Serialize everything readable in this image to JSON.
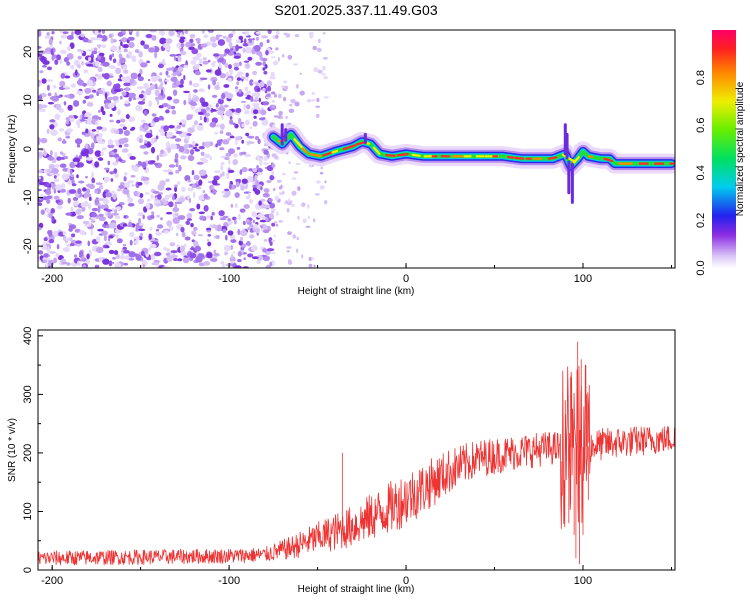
{
  "title": "S201.2025.337.11.49.G03",
  "chart_data": [
    {
      "type": "heatmap",
      "name": "spectrogram",
      "xlabel": "Height of straight line (km)",
      "ylabel": "Frequency (Hz)",
      "xlim": [
        -208,
        152
      ],
      "ylim": [
        -24.5,
        24.5
      ],
      "xticks": [
        -200,
        -100,
        0,
        100
      ],
      "yticks": [
        -20,
        -10,
        0,
        10,
        20
      ],
      "noise_region_km": [
        -208,
        -75
      ],
      "sparse_noise_region_km": [
        -75,
        -45
      ],
      "signal_track": [
        {
          "x": -75,
          "y": 2.5
        },
        {
          "x": -70,
          "y": 1.0
        },
        {
          "x": -65,
          "y": 3.0
        },
        {
          "x": -60,
          "y": 0.5
        },
        {
          "x": -55,
          "y": -1.0
        },
        {
          "x": -48,
          "y": -1.5
        },
        {
          "x": -40,
          "y": -0.5
        },
        {
          "x": -35,
          "y": 0.0
        },
        {
          "x": -30,
          "y": 0.5
        },
        {
          "x": -25,
          "y": 1.5
        },
        {
          "x": -20,
          "y": 1.0
        },
        {
          "x": -15,
          "y": -1.0
        },
        {
          "x": -8,
          "y": -1.5
        },
        {
          "x": 0,
          "y": -1.0
        },
        {
          "x": 10,
          "y": -1.5
        },
        {
          "x": 20,
          "y": -1.5
        },
        {
          "x": 30,
          "y": -1.5
        },
        {
          "x": 45,
          "y": -1.5
        },
        {
          "x": 55,
          "y": -1.5
        },
        {
          "x": 65,
          "y": -2.0
        },
        {
          "x": 75,
          "y": -2.0
        },
        {
          "x": 83,
          "y": -2.0
        },
        {
          "x": 90,
          "y": -1.0
        },
        {
          "x": 93,
          "y": -3.5
        },
        {
          "x": 97,
          "y": -2.0
        },
        {
          "x": 100,
          "y": -0.5
        },
        {
          "x": 103,
          "y": -1.5
        },
        {
          "x": 110,
          "y": -2.0
        },
        {
          "x": 115,
          "y": -2.0
        },
        {
          "x": 118,
          "y": -3.0
        },
        {
          "x": 130,
          "y": -3.0
        },
        {
          "x": 140,
          "y": -3.0
        },
        {
          "x": 150,
          "y": -3.0
        }
      ],
      "colorbar": {
        "label": "Normalized spectral amplitude",
        "range": [
          0,
          1
        ],
        "ticks": [
          "0.0",
          "0.2",
          "0.4",
          "0.6",
          "0.8"
        ]
      }
    },
    {
      "type": "line",
      "name": "snr",
      "xlabel": "Height of straight line (km)",
      "ylabel": "SNR (10 * v/v)",
      "xlim": [
        -208,
        152
      ],
      "ylim": [
        0,
        410
      ],
      "xticks": [
        -200,
        -100,
        0,
        100
      ],
      "yticks": [
        0,
        100,
        200,
        300,
        400
      ],
      "color": "#ee3333",
      "trend": [
        {
          "x": -208,
          "y": 20
        },
        {
          "x": -150,
          "y": 22
        },
        {
          "x": -100,
          "y": 24
        },
        {
          "x": -80,
          "y": 26
        },
        {
          "x": -65,
          "y": 38
        },
        {
          "x": -50,
          "y": 55
        },
        {
          "x": -30,
          "y": 75
        },
        {
          "x": -10,
          "y": 105
        },
        {
          "x": 10,
          "y": 140
        },
        {
          "x": 25,
          "y": 170
        },
        {
          "x": 40,
          "y": 190
        },
        {
          "x": 60,
          "y": 200
        },
        {
          "x": 80,
          "y": 208
        },
        {
          "x": 100,
          "y": 210
        },
        {
          "x": 120,
          "y": 218
        },
        {
          "x": 152,
          "y": 225
        }
      ],
      "noise_amplitude": [
        {
          "x": -208,
          "y": 8
        },
        {
          "x": -80,
          "y": 8
        },
        {
          "x": -40,
          "y": 20
        },
        {
          "x": 0,
          "y": 30
        },
        {
          "x": 40,
          "y": 20
        },
        {
          "x": 85,
          "y": 18
        },
        {
          "x": 100,
          "y": 18
        },
        {
          "x": 152,
          "y": 15
        }
      ],
      "spikes": [
        {
          "x": -36,
          "y": 200
        },
        {
          "x": 96,
          "y": 20
        },
        {
          "x": 97,
          "y": 390
        },
        {
          "x": 98,
          "y": 10
        },
        {
          "x": 99,
          "y": 360
        },
        {
          "x": 100,
          "y": 60
        },
        {
          "x": 93,
          "y": 330
        },
        {
          "x": 92,
          "y": 80
        },
        {
          "x": 102,
          "y": 300
        },
        {
          "x": 103,
          "y": 120
        },
        {
          "x": 90,
          "y": 290
        },
        {
          "x": 95,
          "y": 60
        }
      ]
    }
  ]
}
